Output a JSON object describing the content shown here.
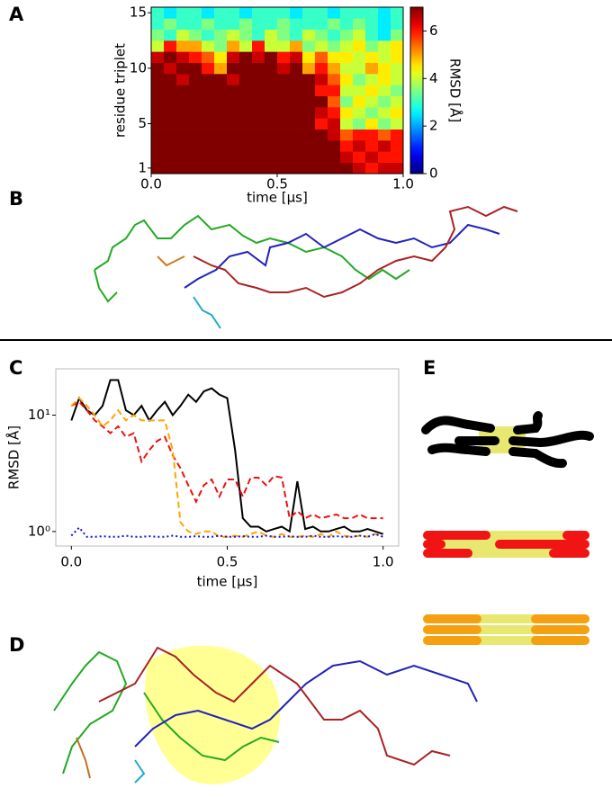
{
  "panel_labels": [
    "A",
    "B",
    "C",
    "D",
    "E"
  ],
  "chart_data": [
    {
      "type": "heatmap",
      "colormap": "jet",
      "xlabel": "time [μs]",
      "ylabel": "residue triplet",
      "x": [
        0.025,
        0.075,
        0.125,
        0.175,
        0.225,
        0.275,
        0.325,
        0.375,
        0.425,
        0.475,
        0.525,
        0.575,
        0.625,
        0.675,
        0.725,
        0.775,
        0.825,
        0.875,
        0.925,
        0.975
      ],
      "y": [
        1,
        2,
        3,
        4,
        5,
        6,
        7,
        8,
        9,
        10,
        11,
        12,
        13,
        14,
        15
      ],
      "z": [
        [
          7,
          7,
          7,
          7,
          7,
          7,
          7,
          7,
          7,
          7,
          7,
          7,
          7,
          7,
          7,
          7,
          6.5,
          6,
          6.5,
          6.5
        ],
        [
          7,
          7,
          7,
          7,
          7,
          7,
          7,
          7,
          7,
          7,
          7,
          7,
          7,
          7,
          7,
          6.5,
          6,
          6.5,
          6,
          6
        ],
        [
          7,
          7,
          7,
          7,
          7,
          7,
          7,
          7,
          7,
          7,
          7,
          7,
          7,
          7,
          7,
          6,
          6.5,
          6,
          6.5,
          6
        ],
        [
          7,
          7,
          7,
          7,
          7,
          7,
          7,
          7,
          7,
          7,
          7,
          7,
          7,
          7,
          6.5,
          5.5,
          6,
          6,
          5.5,
          6
        ],
        [
          7,
          7,
          7,
          7,
          7,
          7,
          7,
          7,
          7,
          7,
          7,
          7,
          7,
          6,
          6.5,
          4,
          3.5,
          4.5,
          3.5,
          4
        ],
        [
          7,
          7,
          7,
          7,
          7,
          7,
          7,
          7,
          7,
          7,
          7,
          7,
          7,
          6.5,
          6,
          4.5,
          4,
          3.5,
          4,
          4.5
        ],
        [
          7,
          7,
          7,
          7,
          7,
          7,
          7,
          7,
          7,
          7,
          7,
          7,
          7,
          7,
          5.5,
          3.5,
          4.5,
          4,
          3.5,
          4
        ],
        [
          7,
          7,
          7,
          7,
          7,
          7,
          7,
          7,
          7,
          7,
          7,
          7,
          7,
          6,
          6,
          4,
          4,
          4.5,
          4,
          3.5
        ],
        [
          7,
          7,
          6.5,
          7,
          7,
          7,
          6.5,
          7,
          7,
          7,
          7,
          7,
          7,
          6.5,
          5.5,
          4.5,
          3.5,
          4,
          4.5,
          4
        ],
        [
          7,
          6.5,
          7,
          7,
          6,
          5,
          7,
          7,
          7,
          7,
          6.5,
          7,
          5,
          6,
          5,
          4,
          4,
          5,
          4.5,
          4
        ],
        [
          6.5,
          7,
          6.5,
          6,
          5.5,
          4.5,
          6.5,
          7,
          6.5,
          7,
          6,
          6.5,
          4.5,
          5.5,
          4.5,
          4.5,
          4,
          4.5,
          4,
          4.5
        ],
        [
          4,
          6,
          5,
          5,
          4,
          3.5,
          5,
          4,
          6,
          4,
          4,
          5,
          3.5,
          4,
          3.5,
          4,
          4.5,
          3.5,
          4,
          4.5
        ],
        [
          3.5,
          3,
          4,
          3.5,
          3,
          3.5,
          4,
          3.5,
          3,
          4,
          3.5,
          3,
          4,
          3.5,
          3,
          3.5,
          4,
          3,
          2.5,
          3.5
        ],
        [
          3,
          3.5,
          3,
          3,
          3.5,
          3,
          3,
          3.5,
          3,
          3,
          3.5,
          3,
          3,
          3,
          3.5,
          3,
          3.5,
          3,
          2.5,
          3
        ],
        [
          3,
          2.5,
          3,
          3,
          2.5,
          3,
          3,
          2.5,
          3,
          3,
          3,
          2.5,
          3,
          3,
          2.5,
          3,
          3,
          3,
          2.5,
          3
        ]
      ],
      "xlim": [
        0,
        1
      ],
      "xticks": [
        {
          "value": 0,
          "label": "0.0"
        },
        {
          "value": 0.5,
          "label": "0.5"
        },
        {
          "value": 1,
          "label": "1.0"
        }
      ],
      "ylim": [
        0.5,
        15.5
      ],
      "yticks": [
        1,
        5,
        10,
        15
      ],
      "colorbar": {
        "label": "RMSD [Å]",
        "lim": [
          0,
          7
        ],
        "ticks": [
          0,
          2,
          4,
          6
        ]
      }
    },
    {
      "type": "line",
      "xlabel": "time [μs]",
      "ylabel": "RMSD [Å]",
      "ylog": true,
      "x": [
        0,
        0.025,
        0.05,
        0.075,
        0.1,
        0.125,
        0.15,
        0.175,
        0.2,
        0.225,
        0.25,
        0.275,
        0.3,
        0.325,
        0.35,
        0.375,
        0.4,
        0.425,
        0.45,
        0.475,
        0.5,
        0.525,
        0.55,
        0.575,
        0.6,
        0.625,
        0.65,
        0.675,
        0.7,
        0.725,
        0.75,
        0.775,
        0.8,
        0.825,
        0.85,
        0.875,
        0.9,
        0.925,
        0.95,
        0.975,
        1
      ],
      "series": [
        {
          "color": "#000000",
          "style": "solid",
          "values": [
            9,
            14,
            11,
            10,
            12,
            20,
            20,
            11,
            10,
            12,
            9,
            11,
            13,
            10,
            12,
            15,
            13,
            16,
            17,
            15,
            14,
            5,
            1.3,
            1.1,
            1.1,
            1,
            1.05,
            1.1,
            1,
            2.7,
            1.05,
            1.1,
            1,
            1,
            1.05,
            1.1,
            1,
            1,
            1.05,
            1,
            0.95
          ]
        },
        {
          "color": "#ee1111",
          "style": "dashed",
          "values": [
            12,
            13,
            11,
            9,
            8,
            7,
            8,
            6.5,
            7,
            4,
            5,
            6,
            6.5,
            4.5,
            3.5,
            2.5,
            1.8,
            2.5,
            2.8,
            2,
            2.8,
            2.8,
            2,
            2.9,
            2.9,
            2.5,
            3,
            2.9,
            1.3,
            1.5,
            1.3,
            1.4,
            1.3,
            1.35,
            1.4,
            1.3,
            1.3,
            1.4,
            1.3,
            1.3,
            1.3
          ]
        },
        {
          "color": "#ffa500",
          "style": "dashed",
          "values": [
            12,
            14,
            12,
            10,
            8,
            9,
            11,
            9,
            10,
            9,
            9,
            9,
            9,
            5,
            1.2,
            1,
            0.95,
            1,
            1,
            0.9,
            0.9,
            0.92,
            0.9,
            0.95,
            1,
            0.92,
            0.9,
            0.95,
            0.9,
            0.9,
            0.92,
            0.9,
            0.95,
            0.9,
            1,
            0.92,
            0.9,
            0.92,
            0.9,
            0.95,
            0.9
          ]
        },
        {
          "color": "#1111dd",
          "style": "dotted",
          "values": [
            0.92,
            1.08,
            0.9,
            0.9,
            0.91,
            0.9,
            0.9,
            0.92,
            0.9,
            0.9,
            0.91,
            0.9,
            0.9,
            0.92,
            0.9,
            0.9,
            0.91,
            0.9,
            0.9,
            0.92,
            0.9,
            0.9,
            0.91,
            0.9,
            0.9,
            0.92,
            0.9,
            0.9,
            0.91,
            0.9,
            0.9,
            0.92,
            0.9,
            0.9,
            0.91,
            0.9,
            0.9,
            0.92,
            0.9,
            0.95,
            0.9
          ]
        }
      ],
      "xlim": [
        -0.05,
        1.05
      ],
      "xticks": [
        {
          "value": 0,
          "label": "0.0"
        },
        {
          "value": 0.5,
          "label": "0.5"
        },
        {
          "value": 1,
          "label": "1.0"
        }
      ],
      "ylim": [
        0.75,
        25
      ],
      "yticks": [
        {
          "value": 1,
          "label": "10⁰"
        },
        {
          "value": 10,
          "label": "10¹"
        }
      ]
    }
  ]
}
